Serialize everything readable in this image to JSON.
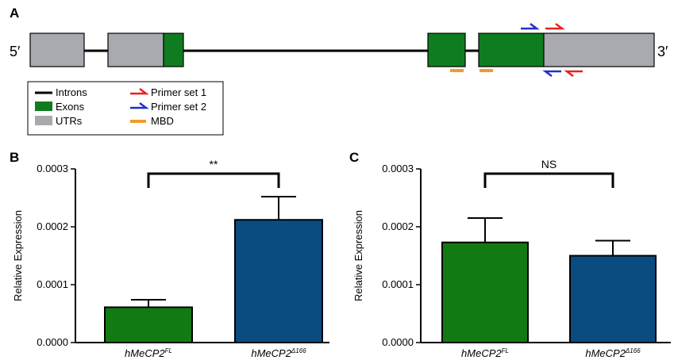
{
  "panel_a": {
    "label": "A",
    "five_prime": "5′",
    "three_prime": "3′",
    "colors": {
      "intron": "#000000",
      "exon": "#0f7d1f",
      "utr": "#a9aab0",
      "primer1": "#e8211f",
      "primer2": "#2130c8",
      "mbd": "#f39a2b"
    },
    "legend": {
      "introns": "Introns",
      "exons": "Exons",
      "utrs": "UTRs",
      "primer1": "Primer set 1",
      "primer2": "Primer set 2",
      "mbd": "MBD"
    }
  },
  "chart_data": [
    {
      "type": "bar",
      "panel": "B",
      "categories": [
        {
          "base": "hMeCP2",
          "sup": "FL"
        },
        {
          "base": "hMeCP2",
          "sup": "Δ166"
        }
      ],
      "values": [
        6.1e-05,
        0.000212
      ],
      "errors": [
        1.3e-05,
        4e-05
      ],
      "colors": [
        "#127a12",
        "#0b4c80"
      ],
      "ylabel": "Relative Expression",
      "ylim": [
        0,
        0.0003
      ],
      "yticks": [
        "0.0000",
        "0.0001",
        "0.0002",
        "0.0003"
      ],
      "significance": "**"
    },
    {
      "type": "bar",
      "panel": "C",
      "categories": [
        {
          "base": "hMeCP2",
          "sup": "FL"
        },
        {
          "base": "hMeCP2",
          "sup": "Δ166"
        }
      ],
      "values": [
        0.000173,
        0.00015
      ],
      "errors": [
        4.2e-05,
        2.6e-05
      ],
      "colors": [
        "#127a12",
        "#0b4c80"
      ],
      "ylabel": "Relative Expression",
      "ylim": [
        0,
        0.0003
      ],
      "yticks": [
        "0.0000",
        "0.0001",
        "0.0002",
        "0.0003"
      ],
      "significance": "NS"
    }
  ]
}
